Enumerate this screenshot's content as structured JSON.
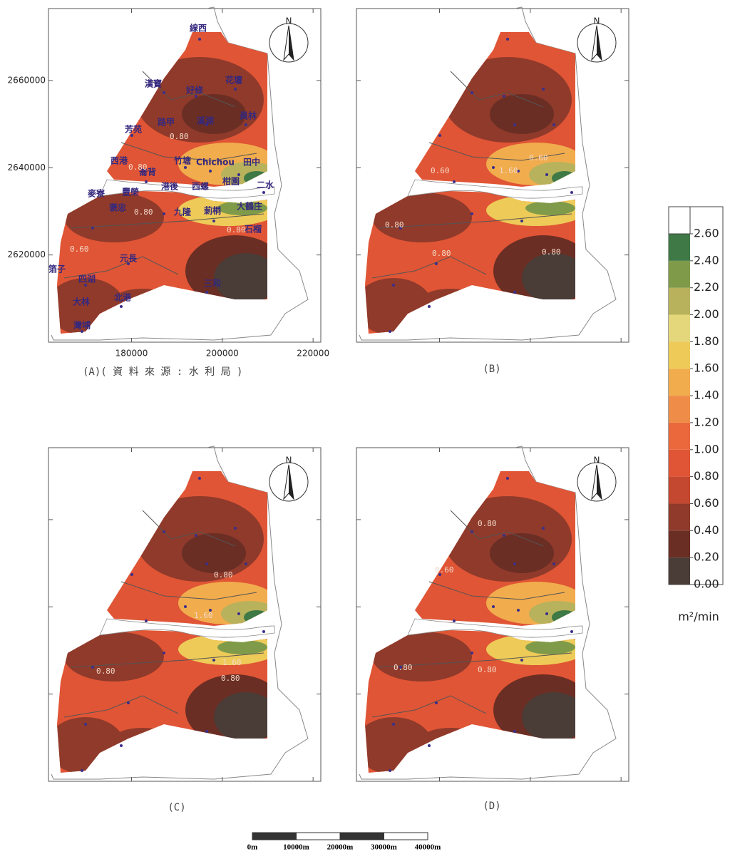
{
  "panels": [
    {
      "caption": "(A)( 資 料 來 源 : 水 利 局 )",
      "north": "N",
      "axes": {
        "xlim": [
          161700,
          221700
        ],
        "ylim": [
          2600000,
          2676500
        ],
        "xticks": [
          180000,
          200000,
          220000
        ],
        "yticks": [
          2620000,
          2640000,
          2660000
        ]
      },
      "places": [
        "線西",
        "漢寶",
        "好修",
        "花壇",
        "溪湖",
        "員林",
        "芳苑",
        "路甲",
        "西港",
        "竹塘",
        "Chichou",
        "田中",
        "崙背",
        "港後",
        "西螺",
        "柑園",
        "二水",
        "麥寮",
        "豐榮",
        "褒忠",
        "九隆",
        "莿桐",
        "大鶴庄",
        "石榴",
        "元長",
        "箔子",
        "四湖",
        "北港",
        "三和",
        "大林",
        "灣埔"
      ],
      "contours": [
        "0.80",
        "0.80",
        "0.80",
        "0.80",
        "0.60"
      ]
    },
    {
      "caption": "(B)",
      "north": "N",
      "contours": [
        "0.60",
        "0.60",
        "1.60",
        "0.80",
        "0.80",
        "0.80"
      ]
    },
    {
      "caption": "(C)",
      "north": "N",
      "contours": [
        "0.80",
        "1.60",
        "0.80",
        "1.60",
        "0.80"
      ]
    },
    {
      "caption": "(D)",
      "north": "N",
      "contours": [
        "0.80",
        "0.60",
        "0.80",
        "0.80"
      ]
    }
  ],
  "legend": {
    "ticks": [
      {
        "value": 0,
        "label": "0.00"
      },
      {
        "value": 0.2,
        "label": "0.20"
      },
      {
        "value": 0.4,
        "label": "0.40"
      },
      {
        "value": 0.6,
        "label": "0.60"
      },
      {
        "value": 0.8,
        "label": "0.80"
      },
      {
        "value": 1,
        "label": "1.00"
      },
      {
        "value": 1.2,
        "label": "1.20"
      },
      {
        "value": 1.4,
        "label": "1.40"
      },
      {
        "value": 1.6,
        "label": "1.60"
      },
      {
        "value": 1.8,
        "label": "1.80"
      },
      {
        "value": 2,
        "label": "2.00"
      },
      {
        "value": 2.2,
        "label": "2.20"
      },
      {
        "value": 2.4,
        "label": "2.40"
      },
      {
        "value": 2.6,
        "label": "2.60"
      }
    ],
    "colors": [
      "#4a3c37",
      "#6b2e24",
      "#8f3a2b",
      "#c4472f",
      "#e05535",
      "#ea683c",
      "#ef8d48",
      "#f1ac4d",
      "#eecb58",
      "#e4d67a",
      "#b9b25c",
      "#7f9b4a",
      "#3e7946"
    ],
    "unit": "m²/min"
  },
  "scale_bar": {
    "labels": [
      "0m",
      "10000m",
      "20000m",
      "30000m",
      "40000m"
    ]
  }
}
